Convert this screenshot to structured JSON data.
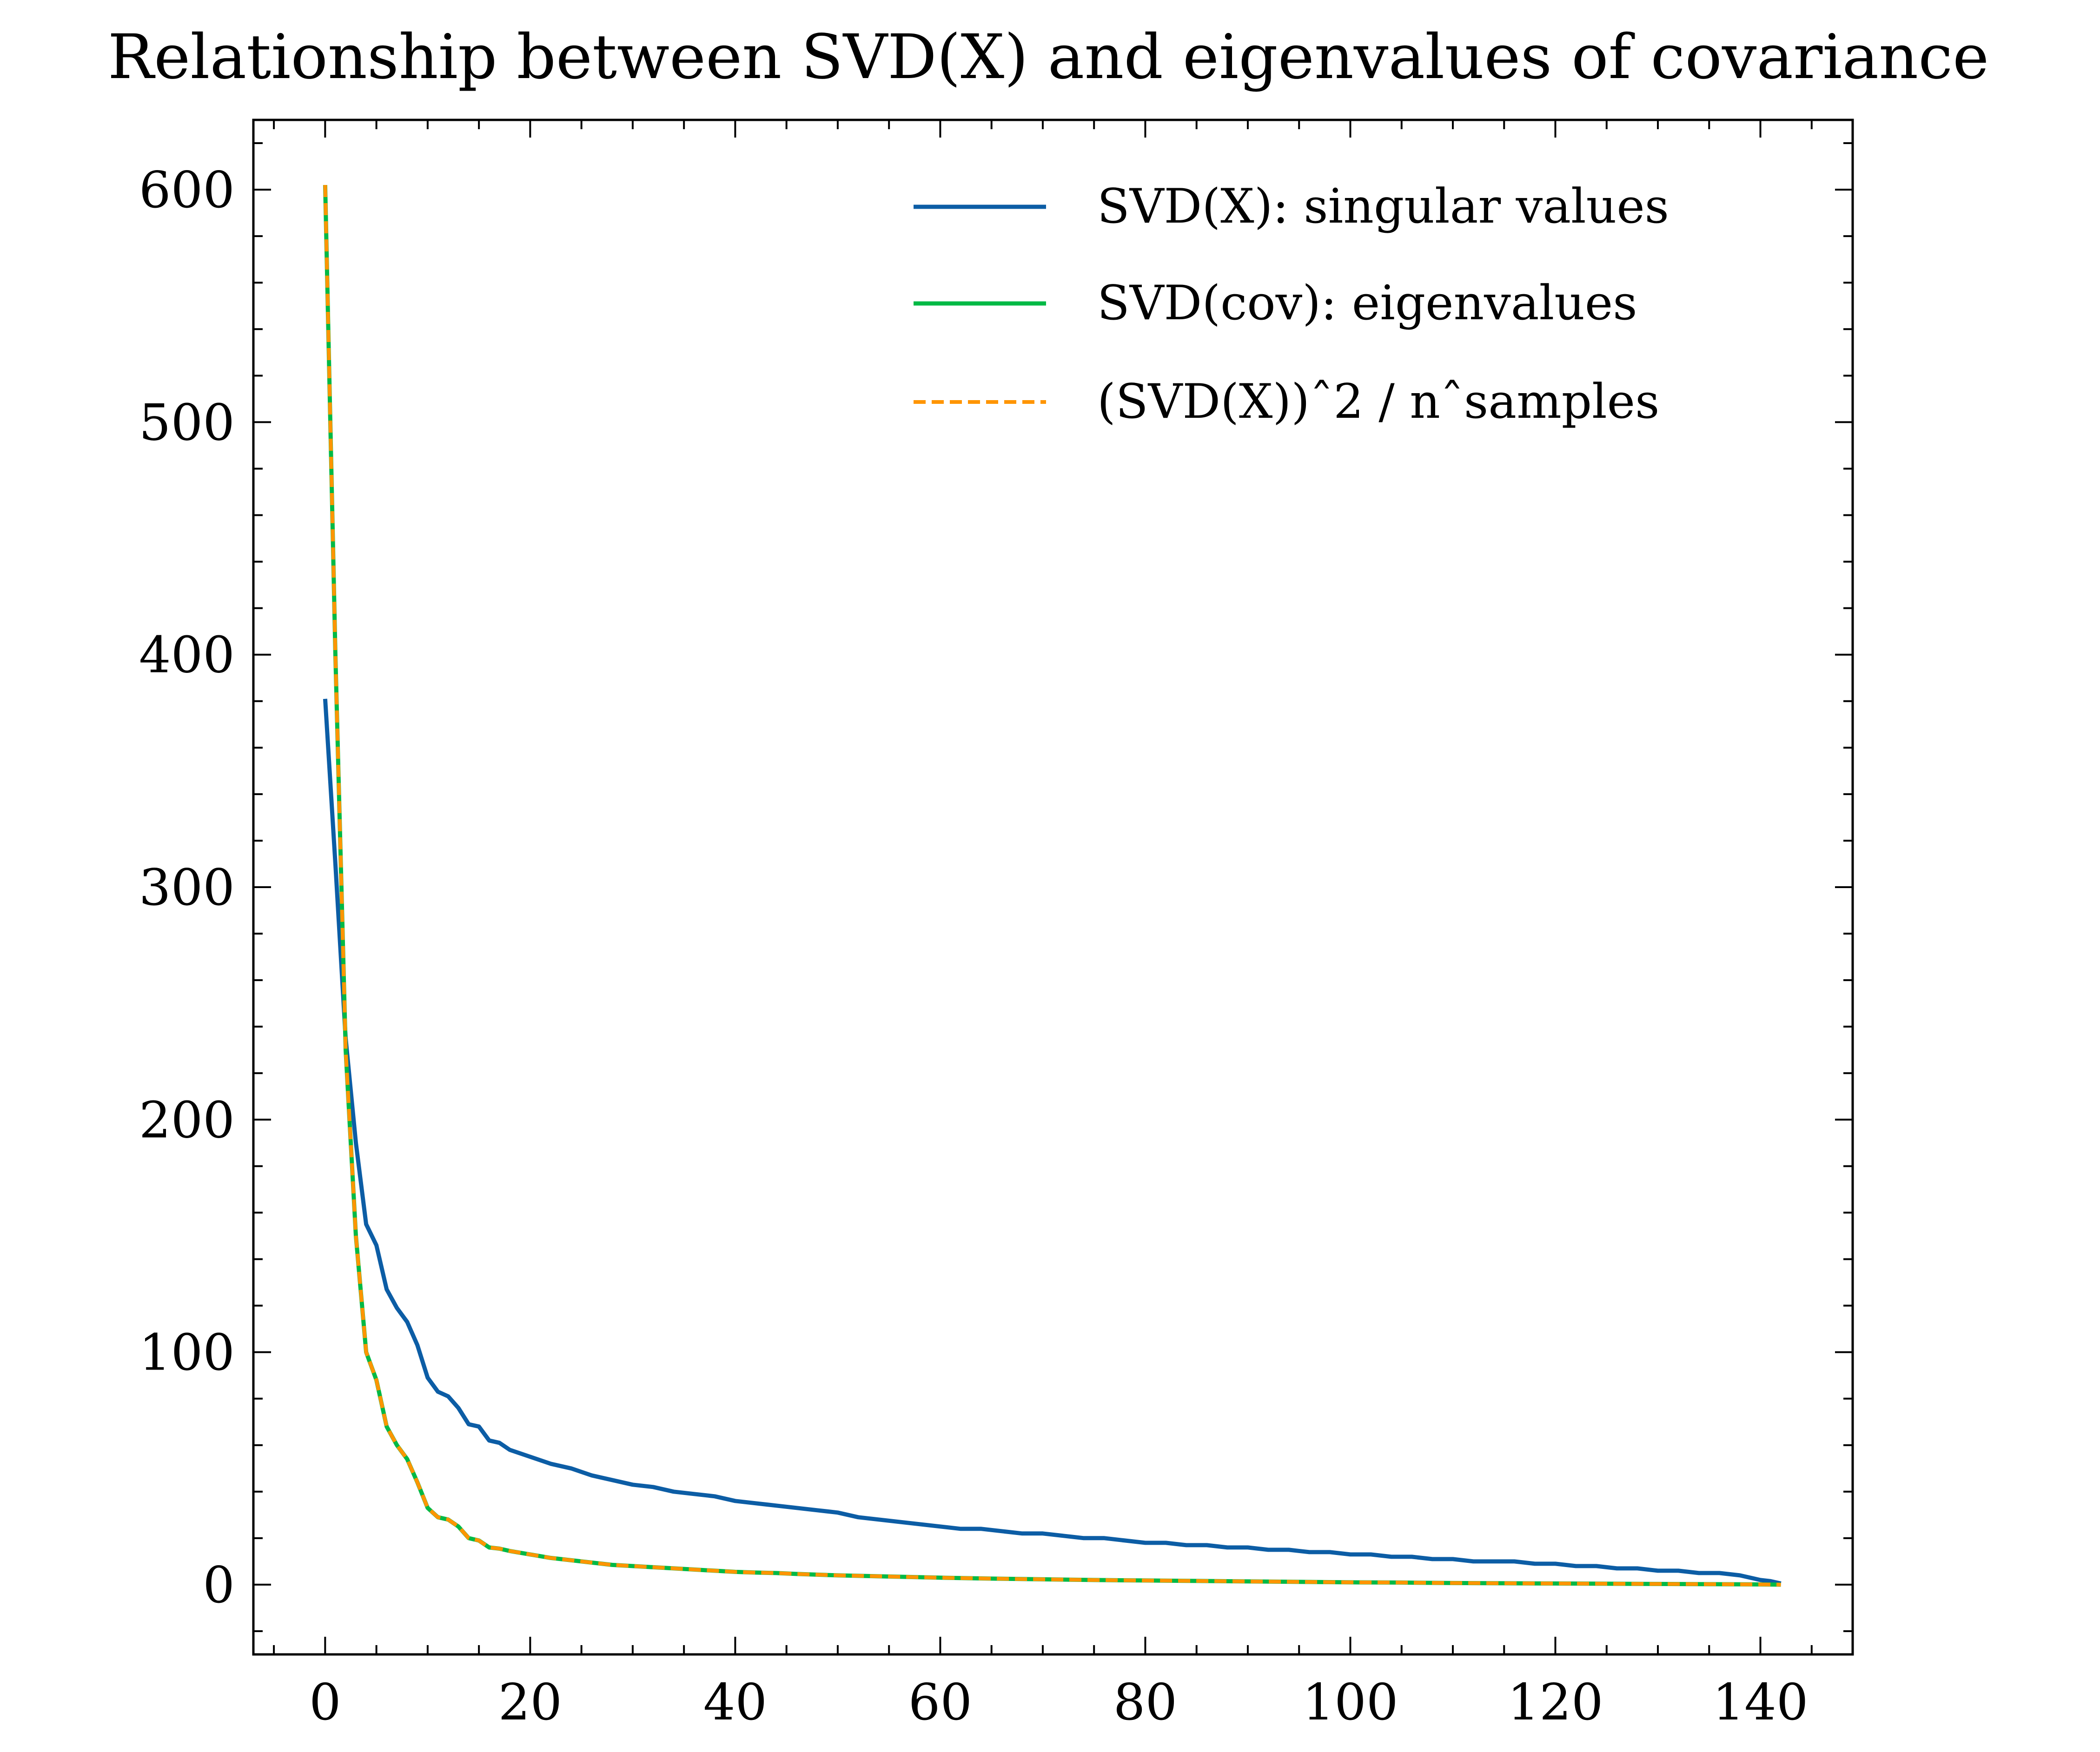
{
  "chart_data": {
    "type": "line",
    "title": "Relationship between SVD(X) and eigenvalues of covariance",
    "xlabel": "",
    "ylabel": "",
    "xlim": [
      -7,
      149
    ],
    "ylim": [
      -30,
      630
    ],
    "x_ticks": [
      0,
      20,
      40,
      60,
      80,
      100,
      120,
      140
    ],
    "y_ticks": [
      0,
      100,
      200,
      300,
      400,
      500,
      600
    ],
    "grid": false,
    "legend_position": "top-right",
    "series": [
      {
        "name": "SVD(X): singular values",
        "color": "#0C5DA5",
        "style": "solid",
        "points": [
          [
            0,
            381
          ],
          [
            1,
            310
          ],
          [
            2,
            235
          ],
          [
            3,
            190
          ],
          [
            4,
            155
          ],
          [
            5,
            146
          ],
          [
            6,
            127
          ],
          [
            7,
            119
          ],
          [
            8,
            113
          ],
          [
            9,
            103
          ],
          [
            10,
            89
          ],
          [
            11,
            83
          ],
          [
            12,
            81
          ],
          [
            13,
            76
          ],
          [
            14,
            69
          ],
          [
            15,
            68
          ],
          [
            16,
            62
          ],
          [
            17,
            61
          ],
          [
            18,
            58
          ],
          [
            20,
            55
          ],
          [
            22,
            52
          ],
          [
            24,
            50
          ],
          [
            26,
            47
          ],
          [
            28,
            45
          ],
          [
            30,
            43
          ],
          [
            32,
            42
          ],
          [
            34,
            40
          ],
          [
            36,
            39
          ],
          [
            38,
            38
          ],
          [
            40,
            36
          ],
          [
            42,
            35
          ],
          [
            44,
            34
          ],
          [
            46,
            33
          ],
          [
            48,
            32
          ],
          [
            50,
            31
          ],
          [
            52,
            29
          ],
          [
            54,
            28
          ],
          [
            56,
            27
          ],
          [
            58,
            26
          ],
          [
            60,
            25
          ],
          [
            62,
            24
          ],
          [
            64,
            24
          ],
          [
            66,
            23
          ],
          [
            68,
            22
          ],
          [
            70,
            22
          ],
          [
            72,
            21
          ],
          [
            74,
            20
          ],
          [
            76,
            20
          ],
          [
            78,
            19
          ],
          [
            80,
            18
          ],
          [
            82,
            18
          ],
          [
            84,
            17
          ],
          [
            86,
            17
          ],
          [
            88,
            16
          ],
          [
            90,
            16
          ],
          [
            92,
            15
          ],
          [
            94,
            15
          ],
          [
            96,
            14
          ],
          [
            98,
            14
          ],
          [
            100,
            13
          ],
          [
            102,
            13
          ],
          [
            104,
            12
          ],
          [
            106,
            12
          ],
          [
            108,
            11
          ],
          [
            110,
            11
          ],
          [
            112,
            10
          ],
          [
            114,
            10
          ],
          [
            116,
            10
          ],
          [
            118,
            9
          ],
          [
            120,
            9
          ],
          [
            122,
            8
          ],
          [
            124,
            8
          ],
          [
            126,
            7
          ],
          [
            128,
            7
          ],
          [
            130,
            6
          ],
          [
            132,
            6
          ],
          [
            134,
            5
          ],
          [
            136,
            5
          ],
          [
            138,
            4
          ],
          [
            139,
            3
          ],
          [
            140,
            2
          ],
          [
            141,
            1.5
          ],
          [
            142,
            0.5
          ]
        ]
      },
      {
        "name": "SVD(cov): eigenvalues",
        "color": "#00B945",
        "style": "solid",
        "points": [
          [
            0,
            602
          ],
          [
            1,
            400
          ],
          [
            2,
            230
          ],
          [
            3,
            150
          ],
          [
            4,
            100
          ],
          [
            5,
            88
          ],
          [
            6,
            68
          ],
          [
            7,
            60
          ],
          [
            8,
            54
          ],
          [
            9,
            44
          ],
          [
            10,
            33
          ],
          [
            11,
            29
          ],
          [
            12,
            28
          ],
          [
            13,
            25
          ],
          [
            14,
            20
          ],
          [
            15,
            19
          ],
          [
            16,
            16
          ],
          [
            17,
            15.5
          ],
          [
            18,
            14.5
          ],
          [
            20,
            13
          ],
          [
            22,
            11.5
          ],
          [
            24,
            10.5
          ],
          [
            26,
            9.5
          ],
          [
            28,
            8.5
          ],
          [
            30,
            8
          ],
          [
            32,
            7.5
          ],
          [
            34,
            7
          ],
          [
            36,
            6.5
          ],
          [
            38,
            6
          ],
          [
            40,
            5.5
          ],
          [
            42,
            5.2
          ],
          [
            44,
            5
          ],
          [
            46,
            4.6
          ],
          [
            48,
            4.3
          ],
          [
            50,
            4
          ],
          [
            55,
            3.5
          ],
          [
            60,
            3
          ],
          [
            65,
            2.6
          ],
          [
            70,
            2.3
          ],
          [
            75,
            2
          ],
          [
            80,
            1.8
          ],
          [
            85,
            1.6
          ],
          [
            90,
            1.4
          ],
          [
            95,
            1.2
          ],
          [
            100,
            1
          ],
          [
            105,
            0.9
          ],
          [
            110,
            0.7
          ],
          [
            115,
            0.6
          ],
          [
            120,
            0.5
          ],
          [
            125,
            0.4
          ],
          [
            130,
            0.3
          ],
          [
            135,
            0.2
          ],
          [
            140,
            0.1
          ],
          [
            142,
            0
          ]
        ]
      },
      {
        "name": "(SVD(X))ˆ2 / nˆsamples",
        "color": "#FF9500",
        "style": "dashed",
        "points": [
          [
            0,
            602
          ],
          [
            1,
            400
          ],
          [
            2,
            230
          ],
          [
            3,
            150
          ],
          [
            4,
            100
          ],
          [
            5,
            88
          ],
          [
            6,
            68
          ],
          [
            7,
            60
          ],
          [
            8,
            54
          ],
          [
            9,
            44
          ],
          [
            10,
            33
          ],
          [
            11,
            29
          ],
          [
            12,
            28
          ],
          [
            13,
            25
          ],
          [
            14,
            20
          ],
          [
            15,
            19
          ],
          [
            16,
            16
          ],
          [
            17,
            15.5
          ],
          [
            18,
            14.5
          ],
          [
            20,
            13
          ],
          [
            22,
            11.5
          ],
          [
            24,
            10.5
          ],
          [
            26,
            9.5
          ],
          [
            28,
            8.5
          ],
          [
            30,
            8
          ],
          [
            32,
            7.5
          ],
          [
            34,
            7
          ],
          [
            36,
            6.5
          ],
          [
            38,
            6
          ],
          [
            40,
            5.5
          ],
          [
            42,
            5.2
          ],
          [
            44,
            5
          ],
          [
            46,
            4.6
          ],
          [
            48,
            4.3
          ],
          [
            50,
            4
          ],
          [
            55,
            3.5
          ],
          [
            60,
            3
          ],
          [
            65,
            2.6
          ],
          [
            70,
            2.3
          ],
          [
            75,
            2
          ],
          [
            80,
            1.8
          ],
          [
            85,
            1.6
          ],
          [
            90,
            1.4
          ],
          [
            95,
            1.2
          ],
          [
            100,
            1
          ],
          [
            105,
            0.9
          ],
          [
            110,
            0.7
          ],
          [
            115,
            0.6
          ],
          [
            120,
            0.5
          ],
          [
            125,
            0.4
          ],
          [
            130,
            0.3
          ],
          [
            135,
            0.2
          ],
          [
            140,
            0.1
          ],
          [
            142,
            0
          ]
        ]
      }
    ]
  }
}
